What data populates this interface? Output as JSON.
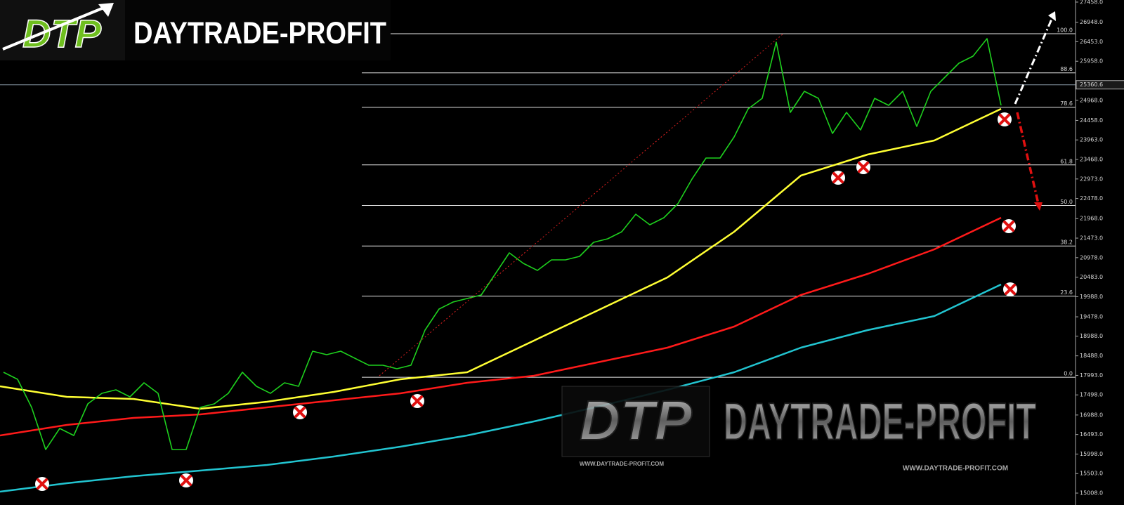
{
  "logo": {
    "mark": "DTP",
    "name": "DAYTRADE-PROFIT"
  },
  "watermark": {
    "mark": "DTP",
    "name": "DAYTRADE-PROFIT",
    "url": "WWW.DAYTRADE-PROFIT.COM"
  },
  "chart_data": {
    "type": "line",
    "ylim": [
      14706,
      27511
    ],
    "yticks": [
      {
        "value": 27458,
        "label": "27458.0"
      },
      {
        "value": 26948,
        "label": "26948.0"
      },
      {
        "value": 26453,
        "label": "26453.0"
      },
      {
        "value": 25958,
        "label": "25958.0"
      },
      {
        "value": 24968,
        "label": "24968.0"
      },
      {
        "value": 24458,
        "label": "24458.0"
      },
      {
        "value": 23963,
        "label": "23963.0"
      },
      {
        "value": 23468,
        "label": "23468.0"
      },
      {
        "value": 22973,
        "label": "22973.0"
      },
      {
        "value": 22478,
        "label": "22478.0"
      },
      {
        "value": 21968,
        "label": "21968.0"
      },
      {
        "value": 21473,
        "label": "21473.0"
      },
      {
        "value": 20978,
        "label": "20978.0"
      },
      {
        "value": 20483,
        "label": "20483.0"
      },
      {
        "value": 19988,
        "label": "19988.0"
      },
      {
        "value": 19478,
        "label": "19478.0"
      },
      {
        "value": 18988,
        "label": "18988.0"
      },
      {
        "value": 18488,
        "label": "18488.0"
      },
      {
        "value": 17993,
        "label": "17993.0"
      },
      {
        "value": 17498,
        "label": "17498.0"
      },
      {
        "value": 16988,
        "label": "16988.0"
      },
      {
        "value": 16493,
        "label": "16493.0"
      },
      {
        "value": 15998,
        "label": "15998.0"
      },
      {
        "value": 15503,
        "label": "15503.0"
      },
      {
        "value": 15008,
        "label": "15008.0"
      }
    ],
    "last_price": 25360.6,
    "fib_range": [
      17946,
      26657
    ],
    "fib_levels": [
      {
        "value": 0,
        "label": "0.0"
      },
      23.6,
      38.2,
      {
        "value": 50,
        "label": "50.0"
      },
      61.8,
      78.6,
      88.6,
      {
        "value": 100,
        "label": "100.0"
      }
    ],
    "series": [
      {
        "color": "#1ed01e",
        "values": [
          18072,
          17894,
          17182,
          16113,
          16647,
          16469,
          17271,
          17538,
          17627,
          17449,
          17805,
          17538,
          16113,
          16113,
          17182,
          17271,
          17538,
          18072,
          17716,
          17538,
          17805,
          17716,
          18607,
          18517,
          18607,
          18428,
          18250,
          18250,
          18161,
          18250,
          19141,
          19675,
          19853,
          19942,
          20031,
          20566,
          21100,
          20833,
          20655,
          20922,
          20922,
          21011,
          21367,
          21456,
          21634,
          22079,
          21812,
          21990,
          22347,
          22970,
          23504,
          23504,
          24038,
          24751,
          25018,
          26443,
          24662,
          25196,
          25018,
          24128,
          24662,
          24217,
          25018,
          24840,
          25196,
          24306,
          25196,
          25552,
          25909,
          26087,
          26532,
          24840
        ]
      },
      {
        "color": "#ffff33",
        "values": [
          17716,
          17449,
          17395,
          17146,
          17324,
          17573,
          17894,
          18072,
          18874,
          19675,
          20476,
          21634,
          23059,
          23593,
          23949,
          24751
        ]
      },
      {
        "color": "#ff1a1a",
        "values": [
          16469,
          16736,
          16914,
          17004,
          17182,
          17360,
          17538,
          17805,
          17983,
          18339,
          18695,
          19230,
          20031,
          20566,
          21189,
          21990
        ]
      },
      {
        "color": "#22c4d0",
        "values": [
          15045,
          15258,
          15436,
          15579,
          15721,
          15935,
          16184,
          16469,
          16825,
          17217,
          17627,
          18072,
          18695,
          19141,
          19497,
          20298
        ]
      }
    ]
  }
}
